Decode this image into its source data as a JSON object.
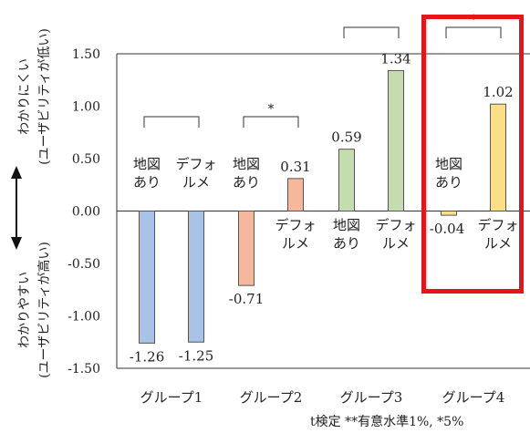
{
  "chart_data": {
    "type": "bar",
    "ylim": [
      -1.5,
      1.5
    ],
    "yticks": [
      "1.50",
      "1.00",
      "0.50",
      "0.00",
      "-0.50",
      "-1.00",
      "-1.50"
    ],
    "ylabel_top": [
      "わかりにくい",
      "(ユーザビリティが低い)"
    ],
    "ylabel_bottom": [
      "わかりやすい",
      "(ユーザビリティが高い)"
    ],
    "groups": [
      {
        "name": "グループ1",
        "bars": [
          {
            "label": [
              "地図",
              "あり"
            ],
            "value": -1.26,
            "value_text": "-1.26",
            "color": "#a8c3e6"
          },
          {
            "label": [
              "デフォ",
              "ルメ"
            ],
            "value": -1.25,
            "value_text": "-1.25",
            "color": "#a8c3e6"
          }
        ],
        "significance": ""
      },
      {
        "name": "グループ2",
        "bars": [
          {
            "label": [
              "地図",
              "あり"
            ],
            "value": -0.71,
            "value_text": "-0.71",
            "color": "#f6b89c"
          },
          {
            "label": [
              "デフォ",
              "ルメ"
            ],
            "value": 0.31,
            "value_text": "0.31",
            "color": "#f6b89c"
          }
        ],
        "significance": "*"
      },
      {
        "name": "グループ3",
        "bars": [
          {
            "label": [
              "地図",
              "あり"
            ],
            "value": 0.59,
            "value_text": "0.59",
            "color": "#c4ddb0"
          },
          {
            "label": [
              "デフォ",
              "ルメ"
            ],
            "value": 1.34,
            "value_text": "1.34",
            "color": "#c4ddb0"
          }
        ],
        "significance": ""
      },
      {
        "name": "グループ4",
        "bars": [
          {
            "label": [
              "地図",
              "あり"
            ],
            "value": -0.04,
            "value_text": "-0.04",
            "color": "#fbdf86"
          },
          {
            "label": [
              "デフォ",
              "ルメ"
            ],
            "value": 1.02,
            "value_text": "1.02",
            "color": "#fbdf86"
          }
        ],
        "significance": "*"
      }
    ],
    "note": "t検定 **有意水準1%,  *5%",
    "highlight": {
      "group": "グループ4",
      "color": "#e8141b"
    }
  }
}
